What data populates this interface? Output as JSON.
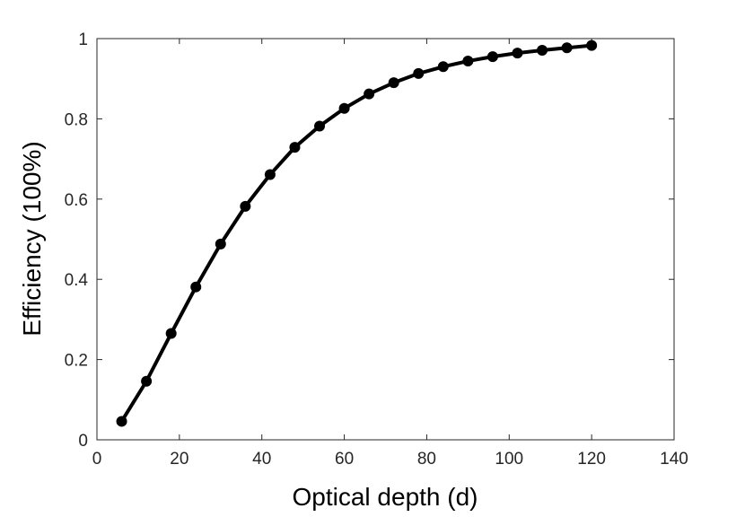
{
  "chart_data": {
    "type": "line",
    "title": "",
    "xlabel": "Optical depth (d)",
    "ylabel": "Efficiency (100%)",
    "xlim": [
      0,
      140
    ],
    "ylim": [
      0,
      1
    ],
    "x_ticks": [
      0,
      20,
      40,
      60,
      80,
      100,
      120,
      140
    ],
    "y_ticks": [
      0,
      0.2,
      0.4,
      0.6,
      0.8,
      1
    ],
    "x_tick_labels": [
      "0",
      "20",
      "40",
      "60",
      "80",
      "100",
      "120",
      "140"
    ],
    "y_tick_labels": [
      "0",
      "0.2",
      "0.4",
      "0.6",
      "0.8",
      "1"
    ],
    "grid": false,
    "legend": "none",
    "series": [
      {
        "color": "#000000",
        "marker": "circle",
        "x": [
          6,
          12,
          18,
          24,
          30,
          36,
          42,
          48,
          54,
          60,
          66,
          72,
          78,
          84,
          90,
          96,
          102,
          108,
          114,
          120
        ],
        "y": [
          0.046,
          0.146,
          0.265,
          0.381,
          0.488,
          0.582,
          0.661,
          0.729,
          0.782,
          0.826,
          0.862,
          0.89,
          0.913,
          0.93,
          0.944,
          0.955,
          0.964,
          0.971,
          0.977,
          0.983
        ]
      }
    ]
  }
}
